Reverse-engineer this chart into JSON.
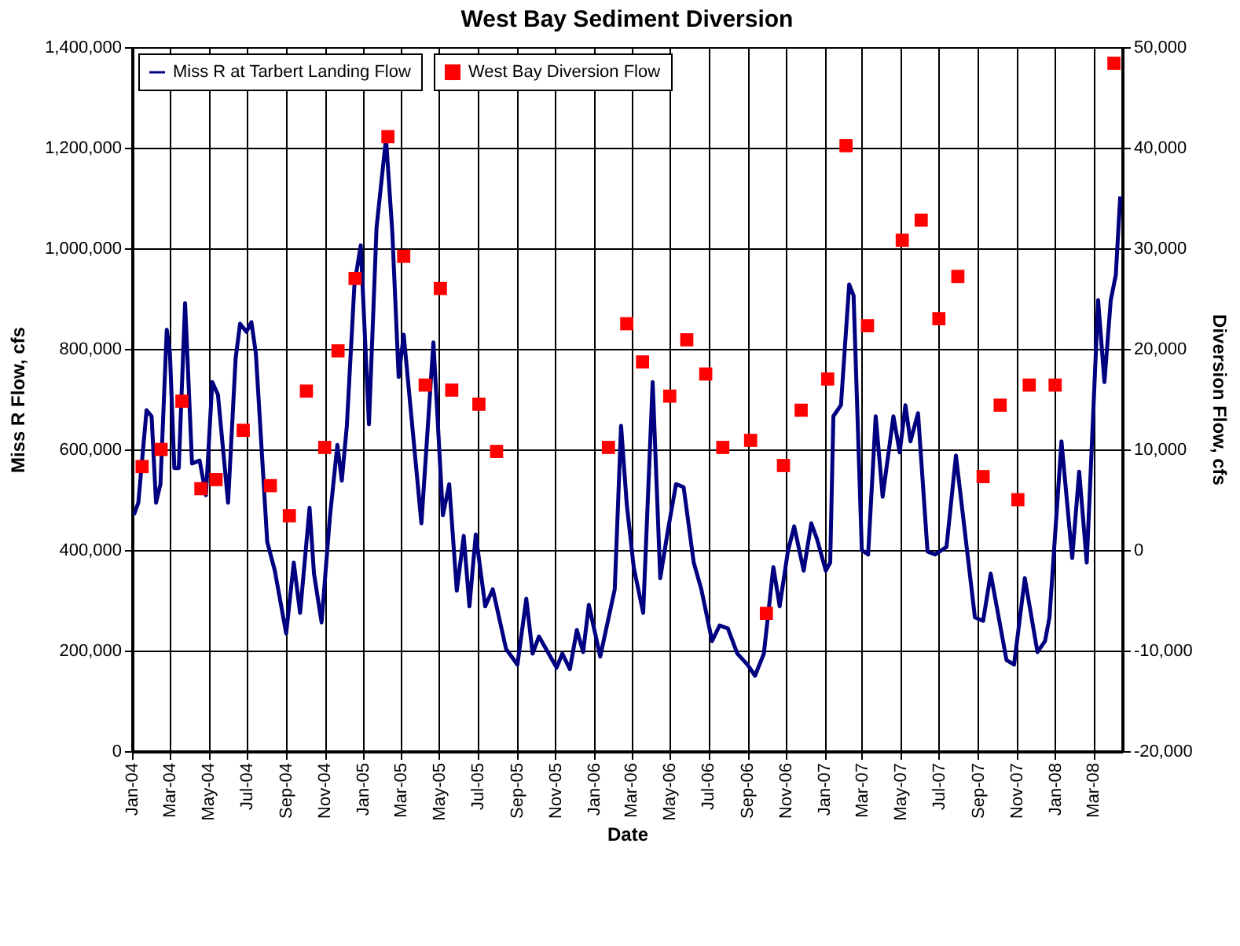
{
  "chart_data": {
    "type": "line",
    "title": "West Bay Sediment Diversion",
    "xlabel": "Date",
    "ylabel": "Miss R Flow, cfs",
    "y2label": "Diversion Flow, cfs",
    "xlim": [
      "2004-01-01",
      "2008-04-16"
    ],
    "xticks": [
      {
        "value": "2004-01-01",
        "label": "Jan-04"
      },
      {
        "value": "2004-03-01",
        "label": "Mar-04"
      },
      {
        "value": "2004-05-01",
        "label": "May-04"
      },
      {
        "value": "2004-07-01",
        "label": "Jul-04"
      },
      {
        "value": "2004-09-01",
        "label": "Sep-04"
      },
      {
        "value": "2004-11-01",
        "label": "Nov-04"
      },
      {
        "value": "2005-01-01",
        "label": "Jan-05"
      },
      {
        "value": "2005-03-01",
        "label": "Mar-05"
      },
      {
        "value": "2005-05-01",
        "label": "May-05"
      },
      {
        "value": "2005-07-01",
        "label": "Jul-05"
      },
      {
        "value": "2005-09-01",
        "label": "Sep-05"
      },
      {
        "value": "2005-11-01",
        "label": "Nov-05"
      },
      {
        "value": "2006-01-01",
        "label": "Jan-06"
      },
      {
        "value": "2006-03-01",
        "label": "Mar-06"
      },
      {
        "value": "2006-05-01",
        "label": "May-06"
      },
      {
        "value": "2006-07-01",
        "label": "Jul-06"
      },
      {
        "value": "2006-09-01",
        "label": "Sep-06"
      },
      {
        "value": "2006-11-01",
        "label": "Nov-06"
      },
      {
        "value": "2007-01-01",
        "label": "Jan-07"
      },
      {
        "value": "2007-03-01",
        "label": "Mar-07"
      },
      {
        "value": "2007-05-01",
        "label": "May-07"
      },
      {
        "value": "2007-07-01",
        "label": "Jul-07"
      },
      {
        "value": "2007-09-01",
        "label": "Sep-07"
      },
      {
        "value": "2007-11-01",
        "label": "Nov-07"
      },
      {
        "value": "2008-01-01",
        "label": "Jan-08"
      },
      {
        "value": "2008-03-01",
        "label": "Mar-08"
      }
    ],
    "ylim": [
      0,
      1400000
    ],
    "yticks": [
      {
        "value": 0,
        "label": "0"
      },
      {
        "value": 200000,
        "label": "200,000"
      },
      {
        "value": 400000,
        "label": "400,000"
      },
      {
        "value": 600000,
        "label": "600,000"
      },
      {
        "value": 800000,
        "label": "800,000"
      },
      {
        "value": 1000000,
        "label": "1,000,000"
      },
      {
        "value": 1200000,
        "label": "1,200,000"
      },
      {
        "value": 1400000,
        "label": "1,400,000"
      }
    ],
    "y2lim": [
      -20000,
      50000
    ],
    "y2ticks": [
      {
        "value": -20000,
        "label": "-20,000"
      },
      {
        "value": -10000,
        "label": "-10,000"
      },
      {
        "value": 0,
        "label": "0"
      },
      {
        "value": 10000,
        "label": "10,000"
      },
      {
        "value": 20000,
        "label": "20,000"
      },
      {
        "value": 30000,
        "label": "30,000"
      },
      {
        "value": 40000,
        "label": "40,000"
      },
      {
        "value": 50000,
        "label": "50,000"
      }
    ],
    "grid": true,
    "legend": "top left",
    "line_style": "solid",
    "series": [
      {
        "name": "Miss R at Tarbert Landing Flow",
        "type": "line",
        "marker": "none",
        "color": "#000080",
        "x": [
          "2004-01-04",
          "2004-01-11",
          "2004-01-24",
          "2004-02-01",
          "2004-02-08",
          "2004-02-15",
          "2004-02-25",
          "2004-03-01",
          "2004-03-08",
          "2004-03-15",
          "2004-03-25",
          "2004-04-05",
          "2004-04-17",
          "2004-04-27",
          "2004-05-07",
          "2004-05-16",
          "2004-06-01",
          "2004-06-13",
          "2004-06-20",
          "2004-06-30",
          "2004-07-08",
          "2004-07-15",
          "2004-08-02",
          "2004-08-14",
          "2004-09-01",
          "2004-09-13",
          "2004-09-23",
          "2004-10-08",
          "2004-10-15",
          "2004-10-27",
          "2004-11-09",
          "2004-11-21",
          "2004-11-28",
          "2004-12-06",
          "2004-12-18",
          "2004-12-28",
          "2005-01-10",
          "2005-01-22",
          "2005-02-06",
          "2005-02-16",
          "2005-02-26",
          "2005-03-06",
          "2005-04-03",
          "2005-04-22",
          "2005-05-07",
          "2005-05-17",
          "2005-05-29",
          "2005-06-09",
          "2005-06-18",
          "2005-06-28",
          "2005-07-13",
          "2005-07-25",
          "2005-08-15",
          "2005-09-02",
          "2005-09-16",
          "2005-09-26",
          "2005-10-06",
          "2005-11-03",
          "2005-11-12",
          "2005-11-24",
          "2005-12-05",
          "2005-12-15",
          "2005-12-24",
          "2006-01-11",
          "2006-02-03",
          "2006-02-13",
          "2006-02-22",
          "2006-03-05",
          "2006-03-20",
          "2006-04-04",
          "2006-04-16",
          "2006-04-28",
          "2006-05-11",
          "2006-05-23",
          "2006-06-08",
          "2006-06-20",
          "2006-07-07",
          "2006-07-19",
          "2006-08-01",
          "2006-08-16",
          "2006-09-01",
          "2006-09-13",
          "2006-09-27",
          "2006-10-12",
          "2006-10-22",
          "2006-11-04",
          "2006-11-14",
          "2006-11-29",
          "2006-12-11",
          "2006-12-20",
          "2007-01-03",
          "2007-01-10",
          "2007-01-15",
          "2007-01-27",
          "2007-02-09",
          "2007-02-16",
          "2007-03-01",
          "2007-03-11",
          "2007-03-23",
          "2007-04-03",
          "2007-04-20",
          "2007-04-30",
          "2007-05-09",
          "2007-05-17",
          "2007-05-29",
          "2007-06-13",
          "2007-06-25",
          "2007-07-13",
          "2007-07-28",
          "2007-08-27",
          "2007-09-09",
          "2007-09-21",
          "2007-10-16",
          "2007-10-28",
          "2007-11-14",
          "2007-12-04",
          "2007-12-16",
          "2007-12-23",
          "2008-01-11",
          "2008-01-28",
          "2008-02-08",
          "2008-02-20",
          "2008-03-09",
          "2008-03-19",
          "2008-03-29",
          "2008-04-06",
          "2008-04-13"
        ],
        "values": [
          470000,
          494000,
          678000,
          666000,
          494000,
          531000,
          838000,
          791000,
          563000,
          563000,
          891000,
          572000,
          578000,
          509000,
          734000,
          709000,
          494000,
          781000,
          850000,
          834000,
          853000,
          791000,
          416000,
          359000,
          234000,
          375000,
          275000,
          484000,
          353000,
          256000,
          463000,
          609000,
          538000,
          647000,
          928000,
          1006000,
          650000,
          1041000,
          1219000,
          1031000,
          744000,
          828000,
          453000,
          813000,
          469000,
          531000,
          319000,
          428000,
          288000,
          431000,
          288000,
          322000,
          203000,
          172000,
          303000,
          194000,
          228000,
          166000,
          194000,
          163000,
          241000,
          197000,
          291000,
          188000,
          322000,
          647000,
          491000,
          366000,
          275000,
          734000,
          344000,
          438000,
          531000,
          525000,
          375000,
          322000,
          219000,
          250000,
          244000,
          194000,
          172000,
          150000,
          194000,
          366000,
          288000,
          397000,
          447000,
          359000,
          453000,
          422000,
          359000,
          375000,
          666000,
          688000,
          928000,
          906000,
          400000,
          391000,
          666000,
          506000,
          666000,
          594000,
          688000,
          616000,
          672000,
          397000,
          391000,
          406000,
          588000,
          266000,
          259000,
          353000,
          181000,
          172000,
          344000,
          197000,
          219000,
          266000,
          616000,
          384000,
          556000,
          375000,
          897000,
          734000,
          897000,
          947000,
          1103000
        ]
      },
      {
        "name": "West Bay Diversion Flow",
        "type": "scatter",
        "marker": "square",
        "color": "#ff0000",
        "axis": "y2",
        "x": [
          "2004-01-17",
          "2004-02-16",
          "2004-03-20",
          "2004-04-19",
          "2004-05-13",
          "2004-06-25",
          "2004-08-07",
          "2004-09-06",
          "2004-10-03",
          "2004-11-01",
          "2004-11-22",
          "2004-12-19",
          "2005-02-09",
          "2005-03-06",
          "2005-04-09",
          "2005-05-03",
          "2005-05-21",
          "2005-07-03",
          "2005-07-31",
          "2006-01-24",
          "2006-02-22",
          "2006-03-19",
          "2006-05-01",
          "2006-05-28",
          "2006-06-27",
          "2006-07-24",
          "2006-09-06",
          "2006-10-01",
          "2006-10-28",
          "2006-11-25",
          "2007-01-06",
          "2007-02-04",
          "2007-03-10",
          "2007-05-04",
          "2007-06-03",
          "2007-07-01",
          "2007-07-31",
          "2007-09-09",
          "2007-10-06",
          "2007-11-03",
          "2007-11-21",
          "2008-01-01",
          "2008-04-03"
        ],
        "values": [
          8300,
          10000,
          14800,
          6100,
          7000,
          11900,
          6400,
          3400,
          15800,
          10200,
          19800,
          27000,
          41100,
          29200,
          16400,
          26000,
          15900,
          14500,
          9800,
          10200,
          22500,
          18700,
          15300,
          20900,
          17500,
          10200,
          10900,
          -6300,
          8400,
          13900,
          17000,
          40200,
          22300,
          30800,
          32800,
          23000,
          27200,
          7300,
          14400,
          5000,
          16400,
          16400,
          48400
        ]
      }
    ]
  }
}
